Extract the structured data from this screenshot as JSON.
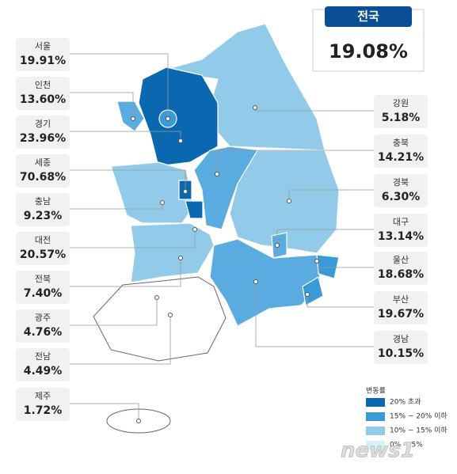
{
  "national": {
    "name": "전국",
    "value": "19.08%"
  },
  "regions": [
    {
      "name": "서울",
      "value": "19.91%"
    },
    {
      "name": "인천",
      "value": "13.60%"
    },
    {
      "name": "경기",
      "value": "23.96%"
    },
    {
      "name": "세종",
      "value": "70.68%"
    },
    {
      "name": "충남",
      "value": "9.23%"
    },
    {
      "name": "대전",
      "value": "20.57%"
    },
    {
      "name": "전북",
      "value": "7.40%"
    },
    {
      "name": "광주",
      "value": "4.76%"
    },
    {
      "name": "전남",
      "value": "4.49%"
    },
    {
      "name": "제주",
      "value": "1.72%"
    },
    {
      "name": "강원",
      "value": "5.18%"
    },
    {
      "name": "충북",
      "value": "14.21%"
    },
    {
      "name": "경북",
      "value": "6.30%"
    },
    {
      "name": "대구",
      "value": "13.14%"
    },
    {
      "name": "울산",
      "value": "18.68%"
    },
    {
      "name": "부산",
      "value": "19.67%"
    },
    {
      "name": "경남",
      "value": "10.15%"
    }
  ],
  "legend": {
    "title": "변동률",
    "entries": [
      "20% 초과",
      "15% ~ 20% 이하",
      "10% ~ 15% 이하",
      "0% ~ 5%"
    ]
  },
  "watermark": "news1"
}
